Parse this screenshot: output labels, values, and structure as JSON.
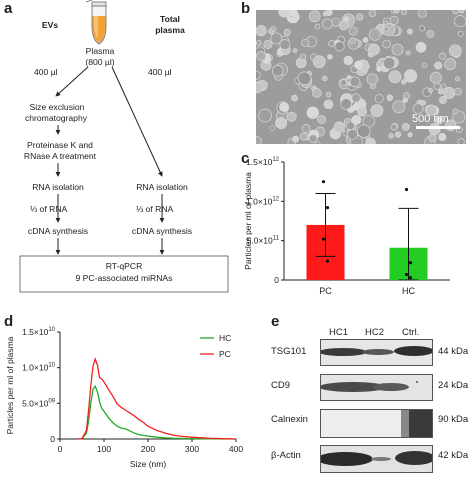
{
  "panels": {
    "a": "a",
    "b": "b",
    "c": "c",
    "d": "d",
    "e": "e"
  },
  "panel_a": {
    "col_evs": "EVs",
    "col_total_1": "Total",
    "col_total_2": "plasma",
    "plasma_1": "Plasma",
    "plasma_2": "(800 µl)",
    "vol_left": "400 µl",
    "vol_right": "400 µl",
    "sec_1": "Size exclusion",
    "sec_2": "chromatography",
    "prot_1": "Proteinase K and",
    "prot_2": "RNase A treatment",
    "rna_iso_left": "RNA isolation",
    "rna_iso_right": "RNA isolation",
    "third_left": "⅓ of RNA",
    "third_right": "⅓ of RNA",
    "cdna_left": "cDNA synthesis",
    "cdna_right": "cDNA synthesis",
    "box_1": "RT-qPCR",
    "box_2": "9 PC-associated miRNAs"
  },
  "panel_b": {
    "scalebar": "500 nm"
  },
  "panel_e": {
    "columns": [
      "HC1",
      "HC2",
      "Ctrl."
    ],
    "rows": [
      {
        "protein": "TSG101",
        "size": "44 kDa"
      },
      {
        "protein": "CD9",
        "size": "24 kDa"
      },
      {
        "protein": "Calnexin",
        "size": "90 kDa"
      },
      {
        "protein": "β-Actin",
        "size": "42 kDa"
      }
    ]
  },
  "chart_data": [
    {
      "type": "bar",
      "panel": "c",
      "title": "",
      "xlabel": "",
      "ylabel": "Particles per ml of plasma",
      "categories": [
        "PC",
        "HC"
      ],
      "values": [
        700000000000.0,
        410000000000.0
      ],
      "error": [
        400000000000.0,
        500000000000.0
      ],
      "colors": [
        "#ff1a1a",
        "#22cc22"
      ],
      "points": [
        [
          1250000000000.0,
          920000000000.0,
          520000000000.0,
          240000000000.0
        ],
        [
          1150000000000.0,
          220000000000.0,
          70000000000.0,
          30000000000.0
        ]
      ],
      "ylim": [
        0,
        1500000000000.0
      ],
      "yticks": [
        "0",
        "5.0×10",
        "1.0×10",
        "1.5×10"
      ],
      "ytick_exp": [
        "",
        "11",
        "12",
        "12"
      ]
    },
    {
      "type": "line",
      "panel": "d",
      "title": "",
      "xlabel": "Size (nm)",
      "ylabel": "Particles per ml of plasma",
      "xlim": [
        0,
        400
      ],
      "ylim": [
        0,
        15000000000.0
      ],
      "xticks": [
        "0",
        "100",
        "200",
        "300",
        "400"
      ],
      "yticks": [
        "0",
        "5.0×10",
        "1.0×10",
        "1.5×10"
      ],
      "ytick_exp": [
        "",
        "09",
        "10",
        "10"
      ],
      "series": [
        {
          "name": "HC",
          "color": "#22aa22",
          "x": [
            40,
            50,
            60,
            65,
            70,
            75,
            80,
            85,
            90,
            95,
            100,
            110,
            120,
            130,
            140,
            150,
            160,
            170,
            180,
            190,
            200,
            220,
            240,
            260,
            280,
            300,
            340,
            400
          ],
          "y": [
            0.0,
            50000000.0,
            800000000.0,
            2500000000.0,
            5000000000.0,
            7000000000.0,
            7400000000.0,
            6600000000.0,
            5200000000.0,
            4300000000.0,
            3900000000.0,
            3000000000.0,
            2300000000.0,
            1800000000.0,
            1500000000.0,
            1400000000.0,
            1100000000.0,
            800000000.0,
            600000000.0,
            500000000.0,
            400000000.0,
            250000000.0,
            150000000.0,
            100000000.0,
            70000000.0,
            50000000.0,
            20000000.0,
            0.0
          ]
        },
        {
          "name": "PC",
          "color": "#ee2222",
          "x": [
            40,
            50,
            60,
            65,
            70,
            75,
            80,
            85,
            90,
            95,
            100,
            110,
            120,
            130,
            140,
            150,
            160,
            170,
            180,
            190,
            200,
            220,
            240,
            260,
            280,
            300,
            340,
            400
          ],
          "y": [
            0.0,
            50000000.0,
            1200000000.0,
            4000000000.0,
            7500000000.0,
            10200000000.0,
            11200000000.0,
            10400000000.0,
            8600000000.0,
            8400000000.0,
            8000000000.0,
            7000000000.0,
            6000000000.0,
            4900000000.0,
            4400000000.0,
            4000000000.0,
            3600000000.0,
            3200000000.0,
            2700000000.0,
            2300000000.0,
            1800000000.0,
            1200000000.0,
            800000000.0,
            500000000.0,
            350000000.0,
            250000000.0,
            100000000.0,
            0.0
          ]
        }
      ]
    }
  ]
}
